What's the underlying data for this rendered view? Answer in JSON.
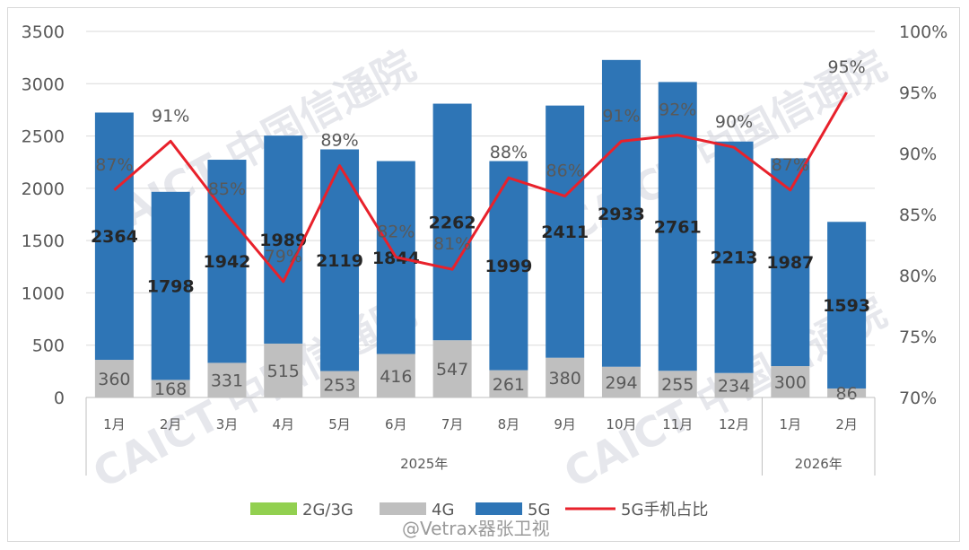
{
  "chart_data": {
    "type": "bar",
    "stacked": true,
    "categories": [
      "1月",
      "2月",
      "3月",
      "4月",
      "5月",
      "6月",
      "7月",
      "8月",
      "9月",
      "10月",
      "11月",
      "12月",
      "1月",
      "2月"
    ],
    "groups": [
      {
        "label": "2025年",
        "count": 12
      },
      {
        "label": "2026年",
        "count": 2
      }
    ],
    "series": [
      {
        "name": "2G/3G",
        "type": "bar",
        "color": "#92d050",
        "values": [
          0,
          0,
          0,
          0,
          0,
          0,
          0,
          0,
          0,
          0,
          0,
          0,
          0,
          0
        ]
      },
      {
        "name": "4G",
        "type": "bar",
        "color": "#bfbfbf",
        "values": [
          360,
          168,
          331,
          515,
          253,
          416,
          547,
          261,
          380,
          294,
          255,
          234,
          300,
          86
        ]
      },
      {
        "name": "5G",
        "type": "bar",
        "color": "#2e75b6",
        "values": [
          2364,
          1798,
          1942,
          1989,
          2119,
          1844,
          2262,
          1999,
          2411,
          2933,
          2761,
          2213,
          1987,
          1593
        ]
      },
      {
        "name": "5G手机占比",
        "type": "line",
        "color": "#e8212b",
        "axis": "right",
        "values": [
          87,
          91,
          85,
          79.5,
          89,
          81.5,
          80.5,
          88,
          86.5,
          91,
          91.5,
          90.5,
          87,
          95
        ]
      }
    ],
    "pct_labels": [
      "87%",
      "91%",
      "85%",
      "79%",
      "89%",
      "82%",
      "81%",
      "88%",
      "86%",
      "91%",
      "92%",
      "90%",
      "87%",
      "95%"
    ],
    "y_left": {
      "min": 0,
      "max": 3500,
      "step": 500,
      "ticks": [
        "0",
        "500",
        "1000",
        "1500",
        "2000",
        "2500",
        "3000",
        "3500"
      ]
    },
    "y_right": {
      "min": 70,
      "max": 100,
      "step": 5,
      "ticks": [
        "70%",
        "75%",
        "80%",
        "85%",
        "90%",
        "95%",
        "100%"
      ]
    },
    "grid": true,
    "legend_position": "bottom"
  },
  "watermark": "CAICT 中国信通院",
  "footer": "@Vetrax器张卫视"
}
